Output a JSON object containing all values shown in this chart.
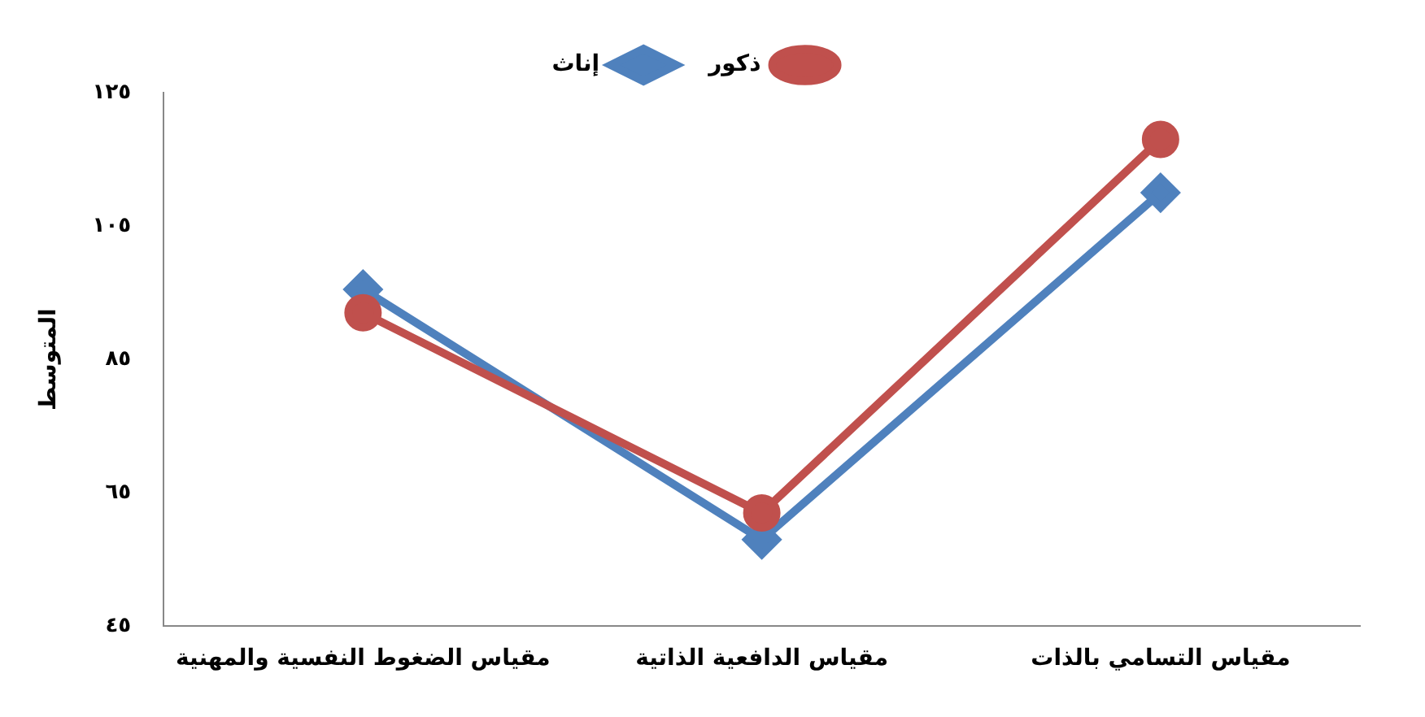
{
  "chart_data": {
    "type": "line",
    "ylabel": "المتوسط",
    "categories": [
      "مقياس الضغوط النفسية والمهنية",
      "مقياس الدافعية الذاتية",
      "مقياس التسامي بالذات"
    ],
    "series": [
      {
        "name": "ذكور",
        "color": "#c0504d",
        "values": [
          92,
          62,
          118
        ],
        "marker": "circle"
      },
      {
        "name": "إناث",
        "color": "#4f81bd",
        "values": [
          95.5,
          58,
          110
        ],
        "marker": "diamond"
      }
    ],
    "ylim": [
      45,
      125
    ],
    "yticks": [
      {
        "value": 45,
        "label": "٤٥"
      },
      {
        "value": 65,
        "label": "٦٥"
      },
      {
        "value": 85,
        "label": "٨٥"
      },
      {
        "value": 105,
        "label": "١٠٥"
      },
      {
        "value": 125,
        "label": "١٢٥"
      }
    ],
    "grid": false,
    "legend": "top"
  }
}
